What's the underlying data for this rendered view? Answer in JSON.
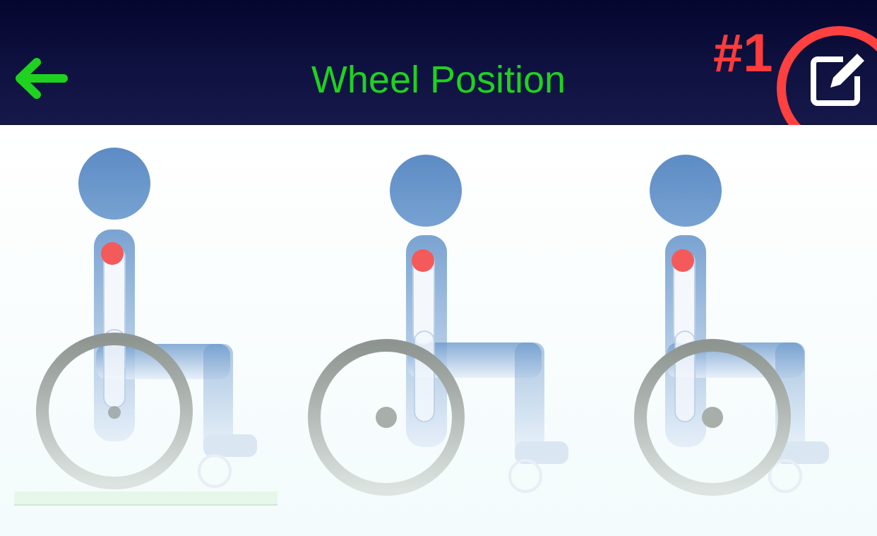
{
  "header": {
    "title": "Wheel Position",
    "back_icon": "arrow-left-icon",
    "edit_icon": "edit-icon",
    "accent_color": "#1fd21f"
  },
  "annotation": {
    "label": "#1",
    "color": "#ff3b3b"
  },
  "options": [
    {
      "id": "wheel-position-1",
      "icon": "wheelchair-icon",
      "selected": true
    },
    {
      "id": "wheel-position-2",
      "icon": "wheelchair-icon",
      "selected": false
    },
    {
      "id": "wheel-position-3",
      "icon": "wheelchair-icon",
      "selected": false
    }
  ]
}
